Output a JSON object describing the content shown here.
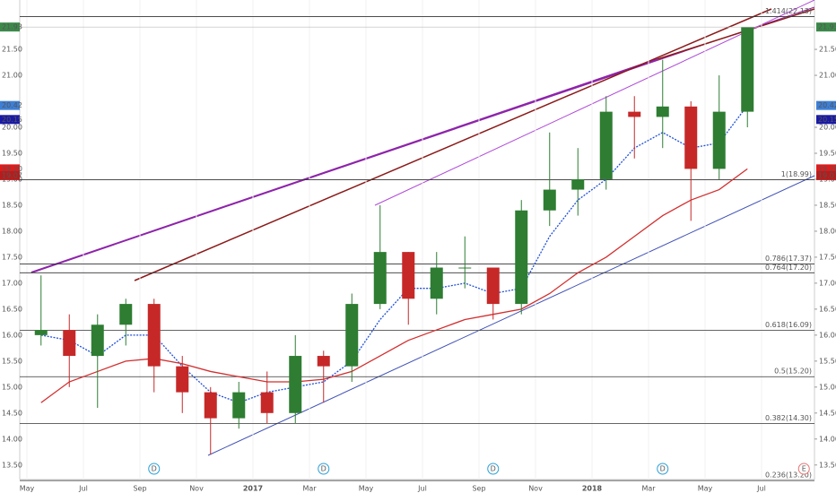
{
  "chart_data": {
    "type": "candlestick",
    "x": [
      "2016-05",
      "2016-06",
      "2016-07",
      "2016-08",
      "2016-09",
      "2016-10",
      "2016-11",
      "2016-12",
      "2017-01",
      "2017-02",
      "2017-03",
      "2017-04",
      "2017-05",
      "2017-06",
      "2017-07",
      "2017-08",
      "2017-09",
      "2017-10",
      "2017-11",
      "2017-12",
      "2018-01",
      "2018-02",
      "2018-03",
      "2018-04",
      "2018-05",
      "2018-06"
    ],
    "open": [
      16.0,
      16.1,
      15.6,
      16.2,
      16.6,
      15.4,
      14.9,
      14.4,
      14.9,
      14.5,
      15.6,
      15.4,
      16.6,
      17.6,
      16.7,
      17.3,
      17.3,
      16.6,
      18.4,
      18.8,
      19.0,
      20.3,
      20.2,
      20.4,
      19.2,
      20.3
    ],
    "high": [
      17.15,
      16.4,
      16.4,
      16.7,
      16.7,
      15.6,
      15.0,
      15.1,
      15.3,
      16.0,
      15.7,
      16.8,
      18.5,
      17.6,
      17.6,
      17.9,
      17.3,
      18.6,
      19.9,
      19.6,
      20.6,
      20.6,
      21.3,
      20.5,
      21.0,
      21.93
    ],
    "low": [
      15.8,
      15.0,
      14.6,
      15.8,
      14.9,
      14.5,
      13.7,
      14.2,
      14.3,
      14.3,
      14.7,
      15.1,
      16.5,
      16.2,
      16.4,
      16.9,
      16.3,
      16.4,
      18.1,
      18.3,
      18.8,
      19.4,
      19.6,
      18.2,
      19.0,
      20.0
    ],
    "close": [
      16.1,
      15.6,
      16.2,
      16.6,
      15.4,
      14.9,
      14.4,
      14.9,
      14.5,
      15.6,
      15.4,
      16.6,
      17.6,
      16.7,
      17.3,
      17.3,
      16.6,
      18.4,
      18.8,
      19.0,
      20.3,
      20.2,
      20.4,
      19.2,
      20.3,
      21.93
    ],
    "up_color": "#2e7d32",
    "down_color": "#c62828",
    "moving_averages": [
      {
        "color": "#1e4fd8",
        "dashed": true,
        "values": [
          16.0,
          15.9,
          15.6,
          16.0,
          16.0,
          15.4,
          14.9,
          14.7,
          14.9,
          15.0,
          15.1,
          15.5,
          16.3,
          16.9,
          16.9,
          17.0,
          16.8,
          16.9,
          17.9,
          18.6,
          19.0,
          19.6,
          19.9,
          19.6,
          19.7,
          20.42
        ]
      },
      {
        "color": "#d32f2f",
        "dashed": false,
        "values": [
          14.7,
          15.1,
          15.3,
          15.5,
          15.55,
          15.45,
          15.3,
          15.2,
          15.1,
          15.1,
          15.15,
          15.3,
          15.6,
          15.9,
          16.1,
          16.3,
          16.4,
          16.5,
          16.8,
          17.2,
          17.5,
          17.9,
          18.3,
          18.6,
          18.8,
          19.2
        ]
      }
    ],
    "ylim": [
      13.22,
      22.45
    ],
    "yticks": [
      {
        "value": 13.5,
        "label": "13.50"
      },
      {
        "value": 14,
        "label": "14.00"
      },
      {
        "value": 14.5,
        "label": "14.50"
      },
      {
        "value": 15,
        "label": "15.00"
      },
      {
        "value": 15.5,
        "label": "15.50"
      },
      {
        "value": 16,
        "label": "16.00"
      },
      {
        "value": 16.5,
        "label": "16.50"
      },
      {
        "value": 17,
        "label": "17.00"
      },
      {
        "value": 17.5,
        "label": "17.50"
      },
      {
        "value": 18,
        "label": "18.00"
      },
      {
        "value": 18.5,
        "label": "18.50"
      },
      {
        "value": 19,
        "label": "19.00"
      },
      {
        "value": 19.5,
        "label": "19.50"
      },
      {
        "value": 20,
        "label": "20.00"
      },
      {
        "value": 21,
        "label": "21.00"
      },
      {
        "value": 21.5,
        "label": "21.50"
      }
    ],
    "xticks": [
      {
        "value": "2016-05",
        "label": "May"
      },
      {
        "value": "2016-07",
        "label": "Jul"
      },
      {
        "value": "2016-09",
        "label": "Sep"
      },
      {
        "value": "2016-11",
        "label": "Nov"
      },
      {
        "value": "2017-01",
        "label": "2017"
      },
      {
        "value": "2017-03",
        "label": "Mar"
      },
      {
        "value": "2017-05",
        "label": "May"
      },
      {
        "value": "2017-07",
        "label": "Jul"
      },
      {
        "value": "2017-09",
        "label": "Sep"
      },
      {
        "value": "2017-11",
        "label": "Nov"
      },
      {
        "value": "2018-01",
        "label": "2018"
      },
      {
        "value": "2018-03",
        "label": "Mar"
      },
      {
        "value": "2018-05",
        "label": "May"
      },
      {
        "value": "2018-07",
        "label": "Jul"
      }
    ],
    "levels": [
      {
        "value": 22.13,
        "label": "1.414(22.13)"
      },
      {
        "value": 18.99,
        "label": "1(18.99)"
      },
      {
        "value": 17.37,
        "label": "0.786(17.37)"
      },
      {
        "value": 17.2,
        "label": "0.764(17.20)"
      },
      {
        "value": 16.09,
        "label": "0.618(16.09)"
      },
      {
        "value": 15.2,
        "label": "0.5(15.20)"
      },
      {
        "value": 14.3,
        "label": "0.382(14.30)"
      },
      {
        "value": 13.2,
        "label": "0.236(13.20)"
      }
    ],
    "price_labels": [
      {
        "value": 21.93,
        "label": "21.93",
        "color": "#3b8a4a"
      },
      {
        "value": 20.42,
        "label": "20.42",
        "color": "#3d7fd6"
      },
      {
        "value": 20.15,
        "label": "20.15",
        "color": "#1a1aa6"
      },
      {
        "value": 19.2,
        "label": "19.20",
        "color": "#e01b1b"
      },
      {
        "value": 19.07,
        "label": "19.07",
        "color": "#b71c1c"
      }
    ],
    "events": [
      {
        "date": "2016-09",
        "label": "D"
      },
      {
        "date": "2017-03",
        "label": "D"
      },
      {
        "date": "2017-09",
        "label": "D"
      },
      {
        "date": "2018-03",
        "label": "D"
      },
      {
        "date": "2018-08",
        "label": "E"
      }
    ]
  }
}
